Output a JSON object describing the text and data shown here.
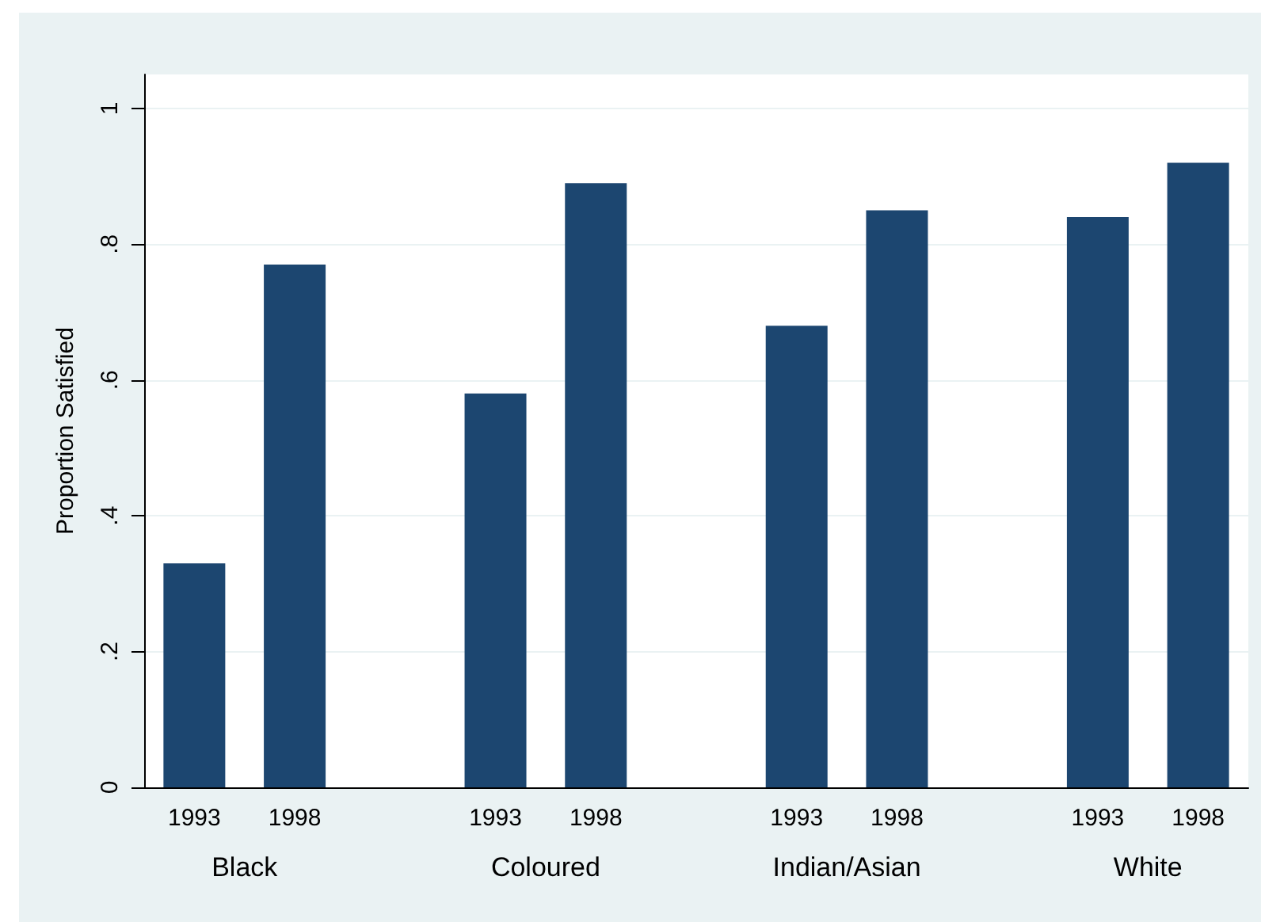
{
  "chart_data": {
    "type": "bar",
    "ylabel": "Proportion Satisfied",
    "categories": [
      "1993",
      "1998",
      null,
      "1993",
      "1998",
      null,
      "1993",
      "1998",
      null,
      "1993",
      "1998"
    ],
    "values": [
      0.33,
      0.77,
      null,
      0.58,
      0.89,
      null,
      0.68,
      0.85,
      null,
      0.84,
      0.92
    ],
    "color": "#1c4670",
    "annotations": [
      "Black",
      "Coloured",
      "Indian/Asian",
      "White"
    ],
    "ylim": [
      0,
      1.05
    ],
    "yticks": [
      0,
      {
        "value": 0.2,
        "label": ".2"
      },
      {
        "value": 0.4,
        "label": ".4"
      },
      {
        "value": 0.6,
        "label": ".6"
      },
      {
        "value": 0.8,
        "label": ".8"
      },
      1
    ],
    "grid": "y"
  }
}
